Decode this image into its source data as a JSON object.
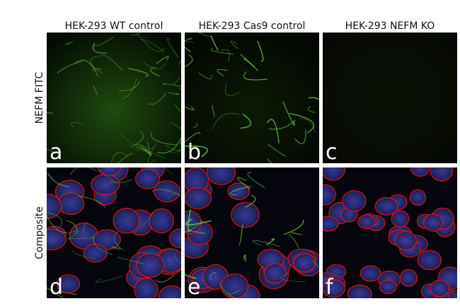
{
  "columns": [
    "HEK-293 WT control",
    "HEK-293 Cas9 control",
    "HEK-293 NEFM KO"
  ],
  "rows": [
    "NEFM FITC",
    "Composite"
  ],
  "panels": [
    [
      "a",
      "b",
      "c"
    ],
    [
      "d",
      "e",
      "f"
    ]
  ]
}
